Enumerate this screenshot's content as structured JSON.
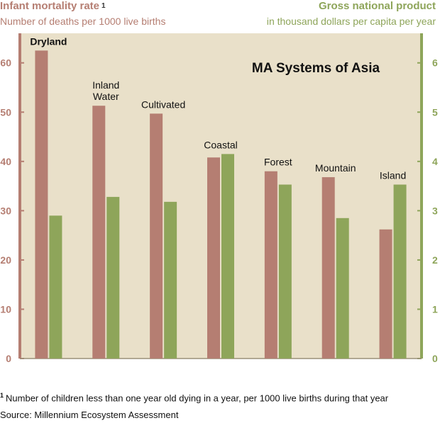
{
  "header": {
    "left_title": "Infant mortality rate",
    "left_footnote_mark": "1",
    "left_subtitle": "Number of deaths per 1000 live births",
    "right_title": "Gross national product",
    "right_subtitle": "in thousand dollars per capita per year"
  },
  "footnote": {
    "mark": "1",
    "text": "Number of children less than one year old dying in a year, per 1000 live births during that year",
    "source": "Source: Millennium Ecosystem Assessment"
  },
  "colors": {
    "left_series": "#b57e72",
    "right_series": "#8ea55a",
    "plot_background": "#e9e0c9",
    "left_axis_text": "#b57e72",
    "right_axis_text": "#8ea55a"
  },
  "chart_data": {
    "type": "bar",
    "title": "MA Systems of Asia",
    "categories": [
      "Dryland",
      "Inland Water",
      "Cultivated",
      "Coastal",
      "Forest",
      "Mountain",
      "Island"
    ],
    "category_label_lines": [
      [
        "Dryland"
      ],
      [
        "Inland",
        "Water"
      ],
      [
        "Cultivated"
      ],
      [
        "Coastal"
      ],
      [
        "Forest"
      ],
      [
        "Mountain"
      ],
      [
        "Island"
      ]
    ],
    "series": [
      {
        "name": "Infant mortality rate",
        "axis": "left",
        "values": [
          62.5,
          51.3,
          49.7,
          40.8,
          38.0,
          36.8,
          26.2
        ]
      },
      {
        "name": "Gross national product",
        "axis": "right",
        "values": [
          2.9,
          3.28,
          3.18,
          4.15,
          3.53,
          2.85,
          3.53
        ]
      }
    ],
    "y_left": {
      "lim": [
        0,
        66
      ],
      "ticks": [
        0,
        10,
        20,
        30,
        40,
        50,
        60
      ]
    },
    "y_right": {
      "lim": [
        0,
        6.6
      ],
      "ticks": [
        0,
        1,
        2,
        3,
        4,
        5,
        6
      ]
    },
    "grid": false,
    "legend": "none"
  }
}
